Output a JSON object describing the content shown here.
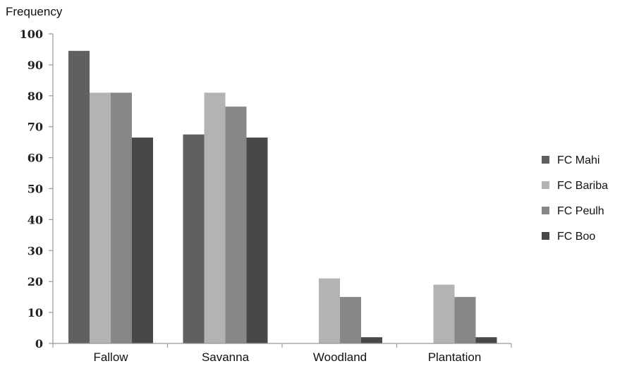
{
  "chart_data": {
    "type": "bar",
    "title": "",
    "ylabel": "Frequency",
    "xlabel": "",
    "ylim": [
      0,
      100
    ],
    "yticks": [
      0,
      10,
      20,
      30,
      40,
      50,
      60,
      70,
      80,
      90,
      100
    ],
    "categories": [
      "Fallow",
      "Savanna",
      "Woodland",
      "Plantation"
    ],
    "series": [
      {
        "name": "FC Mahi",
        "color": "#606060",
        "values": [
          94.5,
          67.5,
          0,
          0
        ]
      },
      {
        "name": "FC Bariba",
        "color": "#b3b3b3",
        "values": [
          81,
          81,
          21,
          19
        ]
      },
      {
        "name": "FC Peulh",
        "color": "#878787",
        "values": [
          81,
          76.5,
          15,
          15
        ]
      },
      {
        "name": "FC Boo",
        "color": "#484848",
        "values": [
          66.5,
          66.5,
          2,
          2
        ]
      }
    ],
    "legend_position": "right",
    "grid": false
  }
}
